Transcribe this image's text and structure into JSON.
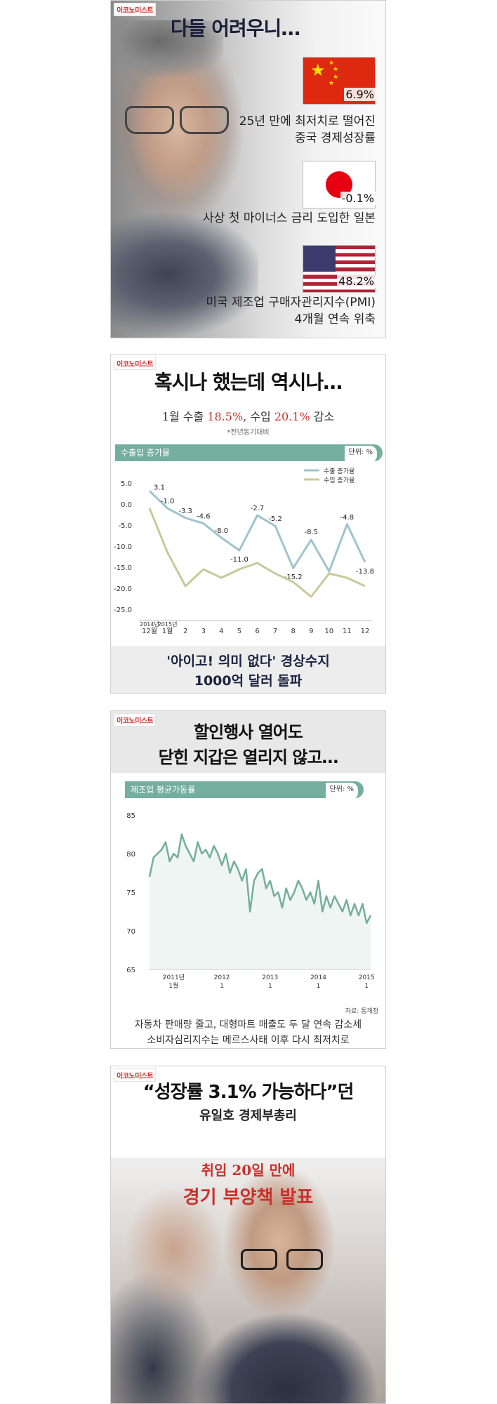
{
  "brand": "이코노미스트",
  "panel1": {
    "title": "다들 어려우니…",
    "items": [
      {
        "value": "6.9%",
        "caption1": "25년 만에 최저치로 떨어진",
        "caption2": "중국 경제성장률",
        "flag": "china-flag"
      },
      {
        "value": "-0.1%",
        "caption1": "사상 첫 마이너스 금리 도입한 일본",
        "caption2": "",
        "flag": "japan-flag"
      },
      {
        "value": "48.2%",
        "caption1": "미국 제조업 구매자관리지수(PMI)",
        "caption2": "4개월 연속 위축",
        "flag": "us-flag"
      }
    ]
  },
  "panel2": {
    "title": "혹시나 했는데 역시나…",
    "subtitle_pre": "1월 수출 ",
    "subtitle_v1": "18.5%",
    "subtitle_mid": ", 수입 ",
    "subtitle_v2": "20.1%",
    "subtitle_post": " 감소",
    "note": "*전년동기대비",
    "chart_label": "수출입 증가율",
    "unit": "단위: %",
    "footer1": "'아이고! 의미 없다' 경상수지",
    "footer2": "1000억 달러 돌파"
  },
  "panel3": {
    "title1": "할인행사 열어도",
    "title2": "닫힌 지갑은 열리지 않고…",
    "chart_label": "제조업 평균가동률",
    "unit": "단위: %",
    "source": "자료: 통계청",
    "caption1": "자동차 판매량 줄고, 대형마트 매출도 두 달 연속 감소세",
    "caption2": "소비자심리지수는 메르스사태 이후 다시 최저치로"
  },
  "panel4": {
    "title1": "“성장률 3.1% 가능하다”던",
    "title2": "유일호 경제부총리",
    "red1": "취임 20일 만에",
    "red2": "경기 부양책 발표"
  },
  "chart_data": [
    {
      "type": "line",
      "title": "수출입 증가율",
      "unit": "단위: %",
      "x": [
        "2014년 12월",
        "2015년 1월",
        "2",
        "3",
        "4",
        "5",
        "6",
        "7",
        "8",
        "9",
        "10",
        "11",
        "12"
      ],
      "x_tick_labels": [
        "12월",
        "1월",
        "2",
        "3",
        "4",
        "5",
        "6",
        "7",
        "8",
        "9",
        "10",
        "11",
        "12"
      ],
      "x_year_labels": [
        "2014년",
        "2015년"
      ],
      "ylim": [
        -25,
        5
      ],
      "yticks": [
        "5.0",
        "0.0",
        "-5.0",
        "-10.0",
        "-15.0",
        "-20.0",
        "-25.0"
      ],
      "series": [
        {
          "name": "수출 증가율",
          "color": "#9fc4cc",
          "values": [
            3.1,
            -1.0,
            -3.3,
            -4.6,
            -8.0,
            -11.0,
            -2.7,
            -5.2,
            -15.2,
            -8.5,
            -16.0,
            -4.8,
            -13.8
          ],
          "labels": [
            "3.1",
            "-1.0",
            "-3.3",
            "-4.6",
            "-8.0",
            "-11.0",
            "-2.7",
            "-5.2",
            "-15.2",
            "-8.5",
            "",
            "-4.8",
            "-13.8"
          ]
        },
        {
          "name": "수입 증가율",
          "color": "#c9c99a",
          "values": [
            -1.0,
            -11.5,
            -19.5,
            -15.5,
            -17.5,
            -15.5,
            -14.0,
            -16.5,
            -18.5,
            -22.0,
            -16.5,
            -17.5,
            -19.5
          ]
        }
      ],
      "legend": "top-right"
    },
    {
      "type": "area",
      "title": "제조업 평균가동률",
      "unit": "단위: %",
      "source": "자료: 통계청",
      "ylim": [
        65,
        85
      ],
      "yticks": [
        "85",
        "80",
        "75",
        "70",
        "65"
      ],
      "x_ticks": [
        {
          "year": "2011년",
          "month": "1월",
          "index": 6
        },
        {
          "year": "2012",
          "month": "1",
          "index": 18
        },
        {
          "year": "2013",
          "month": "1",
          "index": 30
        },
        {
          "year": "2014",
          "month": "1",
          "index": 42
        },
        {
          "year": "2015",
          "month": "1",
          "index": 54
        }
      ],
      "color": "#74ae9c",
      "values": [
        77.0,
        79.5,
        80.0,
        80.5,
        81.5,
        79.0,
        80.0,
        79.5,
        82.5,
        81.0,
        80.0,
        79.0,
        81.5,
        80.0,
        80.5,
        79.5,
        81.0,
        80.0,
        78.5,
        80.0,
        77.5,
        79.0,
        78.0,
        76.5,
        78.0,
        72.5,
        76.5,
        77.5,
        78.0,
        75.5,
        76.5,
        74.5,
        75.0,
        73.0,
        75.5,
        74.0,
        75.0,
        76.5,
        75.5,
        74.0,
        75.0,
        73.5,
        76.5,
        72.5,
        74.5,
        73.0,
        74.5,
        73.5,
        72.5,
        74.0,
        72.0,
        73.5,
        72.0,
        73.5,
        71.0,
        72.0
      ]
    }
  ]
}
